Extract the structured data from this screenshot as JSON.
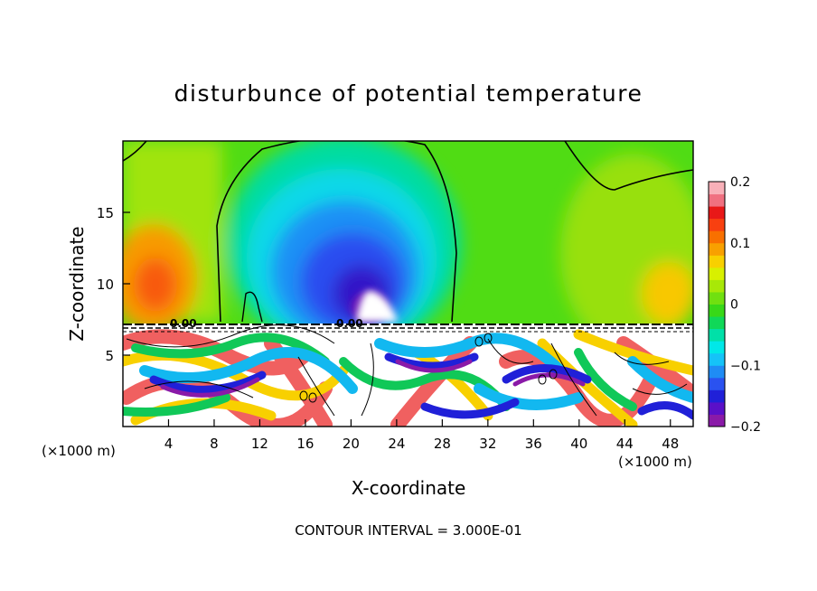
{
  "chart_data": {
    "type": "heatmap",
    "title": "disturbunce of potential temperature",
    "xlabel": "X-coordinate",
    "ylabel": "Z-coordinate",
    "x_unit_left": "(×1000 m)",
    "x_unit_right": "(×1000 m)",
    "xlim": [
      0,
      50
    ],
    "ylim": [
      0,
      20
    ],
    "x_ticks": [
      4,
      8,
      12,
      16,
      20,
      24,
      28,
      32,
      36,
      40,
      44,
      48
    ],
    "y_ticks": [
      5,
      10,
      15
    ],
    "colorbar": {
      "range": [
        -0.2,
        0.2
      ],
      "tick_values": [
        0.2,
        0.1,
        0,
        -0.1,
        -0.2
      ],
      "tick_labels": [
        "0.2",
        "0.1",
        "0",
        "−0.1",
        "−0.2"
      ],
      "colors": [
        "#8a1aa8",
        "#5a10c8",
        "#2020d8",
        "#2a52f0",
        "#1f8cf5",
        "#15c3f8",
        "#00e8e8",
        "#00e0a8",
        "#10d858",
        "#38d818",
        "#70e010",
        "#a8e808",
        "#d8f000",
        "#f8d000",
        "#f8a000",
        "#f87000",
        "#f84010",
        "#e81818",
        "#f07080",
        "#f8b0b8"
      ]
    },
    "contour_labels": [
      "0.00",
      "0.00"
    ],
    "footer": "CONTOUR INTERVAL = 3.000E-01"
  }
}
